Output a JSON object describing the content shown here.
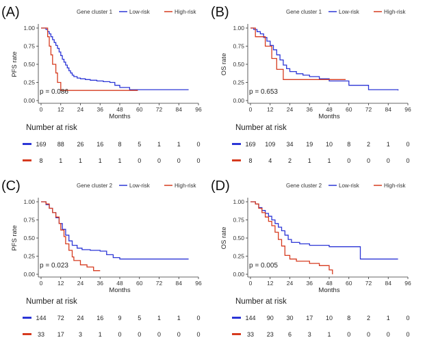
{
  "colors": {
    "low": "#2b35d6",
    "high": "#d63a1e",
    "axis": "#333333"
  },
  "chart_data": [
    {
      "type": "line",
      "panel_label": "(A)",
      "legend_title": "Gene cluster 1",
      "legend_labels": [
        "Low-risk",
        "High-risk"
      ],
      "ylabel": "PFS rate",
      "xlabel": "Months",
      "xticks": [
        "0",
        "12",
        "24",
        "36",
        "48",
        "60",
        "72",
        "84",
        "96"
      ],
      "yticks": [
        "0.00",
        "0.25",
        "0.50",
        "0.75",
        "1.00"
      ],
      "xlim": [
        0,
        96
      ],
      "ylim": [
        0,
        1
      ],
      "pvalue": "p = 0.086",
      "risk_title": "Number at risk",
      "series": [
        {
          "name": "Low-risk",
          "x": [
            0,
            3,
            4,
            5,
            6,
            7,
            8,
            9,
            10,
            11,
            12,
            13,
            14,
            15,
            16,
            17,
            18,
            19,
            20,
            22,
            24,
            27,
            30,
            34,
            38,
            42,
            45,
            48,
            54,
            90
          ],
          "values": [
            1.0,
            0.98,
            0.95,
            0.92,
            0.88,
            0.84,
            0.8,
            0.76,
            0.72,
            0.67,
            0.62,
            0.57,
            0.53,
            0.49,
            0.45,
            0.41,
            0.38,
            0.35,
            0.33,
            0.31,
            0.3,
            0.29,
            0.28,
            0.27,
            0.26,
            0.25,
            0.21,
            0.18,
            0.15,
            0.15
          ],
          "risk": [
            "169",
            "88",
            "26",
            "16",
            "8",
            "5",
            "1",
            "1",
            "0"
          ]
        },
        {
          "name": "High-risk",
          "x": [
            0,
            3,
            4,
            5,
            6,
            7,
            9,
            10,
            12,
            59
          ],
          "values": [
            1.0,
            1.0,
            0.88,
            0.75,
            0.63,
            0.5,
            0.38,
            0.25,
            0.14,
            0.14
          ],
          "risk": [
            "8",
            "1",
            "1",
            "1",
            "1",
            "0",
            "0",
            "0",
            "0"
          ]
        }
      ]
    },
    {
      "type": "line",
      "panel_label": "(B)",
      "legend_title": "Gene cluster 1",
      "legend_labels": [
        "Low-risk",
        "High-risk"
      ],
      "ylabel": "OS rate",
      "xlabel": "Months",
      "xticks": [
        "0",
        "12",
        "24",
        "36",
        "48",
        "60",
        "72",
        "84",
        "96"
      ],
      "yticks": [
        "0.00",
        "0.25",
        "0.50",
        "0.75",
        "1.00"
      ],
      "xlim": [
        0,
        96
      ],
      "ylim": [
        0,
        1
      ],
      "pvalue": "p = 0.653",
      "risk_title": "Number at risk",
      "series": [
        {
          "name": "Low-risk",
          "x": [
            0,
            2,
            4,
            6,
            8,
            10,
            12,
            14,
            16,
            18,
            20,
            22,
            24,
            28,
            32,
            36,
            42,
            48,
            60,
            72,
            90
          ],
          "values": [
            1.0,
            0.98,
            0.95,
            0.92,
            0.87,
            0.82,
            0.76,
            0.7,
            0.63,
            0.56,
            0.49,
            0.44,
            0.4,
            0.37,
            0.35,
            0.33,
            0.3,
            0.27,
            0.21,
            0.15,
            0.14
          ],
          "risk": [
            "169",
            "109",
            "34",
            "19",
            "10",
            "8",
            "2",
            "1",
            "0"
          ]
        },
        {
          "name": "High-risk",
          "x": [
            0,
            3,
            9,
            13,
            16,
            20,
            58
          ],
          "values": [
            1.0,
            0.88,
            0.75,
            0.58,
            0.43,
            0.29,
            0.29
          ],
          "risk": [
            "8",
            "4",
            "2",
            "1",
            "1",
            "0",
            "0",
            "0",
            "0"
          ]
        }
      ]
    },
    {
      "type": "line",
      "panel_label": "(C)",
      "legend_title": "Gene cluster 2",
      "legend_labels": [
        "Low-risk",
        "High-risk"
      ],
      "ylabel": "PFS rate",
      "xlabel": "Months",
      "xticks": [
        "0",
        "12",
        "24",
        "36",
        "48",
        "60",
        "72",
        "84",
        "96"
      ],
      "yticks": [
        "0.00",
        "0.25",
        "0.50",
        "0.75",
        "1.00"
      ],
      "xlim": [
        0,
        96
      ],
      "ylim": [
        0,
        1
      ],
      "pvalue": "p = 0.023",
      "risk_title": "Number at risk",
      "series": [
        {
          "name": "Low-risk",
          "x": [
            0,
            3,
            5,
            7,
            9,
            11,
            13,
            15,
            17,
            19,
            22,
            25,
            30,
            36,
            40,
            44,
            48,
            90
          ],
          "values": [
            1.0,
            0.96,
            0.91,
            0.85,
            0.78,
            0.7,
            0.62,
            0.54,
            0.46,
            0.4,
            0.36,
            0.34,
            0.33,
            0.32,
            0.27,
            0.23,
            0.21,
            0.21
          ],
          "risk": [
            "144",
            "72",
            "24",
            "16",
            "9",
            "5",
            "1",
            "1",
            "0"
          ]
        },
        {
          "name": "High-risk",
          "x": [
            0,
            3,
            5,
            7,
            9,
            11,
            12,
            14,
            15,
            17,
            19,
            20,
            24,
            28,
            32,
            36
          ],
          "values": [
            1.0,
            0.97,
            0.91,
            0.85,
            0.79,
            0.7,
            0.61,
            0.52,
            0.42,
            0.33,
            0.24,
            0.19,
            0.13,
            0.1,
            0.05,
            0.05
          ],
          "risk": [
            "33",
            "17",
            "3",
            "1",
            "0",
            "0",
            "0",
            "0",
            "0"
          ]
        }
      ]
    },
    {
      "type": "line",
      "panel_label": "(D)",
      "legend_title": "Gene cluster 2",
      "legend_labels": [
        "Low-risk",
        "High-risk"
      ],
      "ylabel": "OS rate",
      "xlabel": "Months",
      "xticks": [
        "0",
        "12",
        "24",
        "36",
        "48",
        "60",
        "72",
        "84",
        "96"
      ],
      "yticks": [
        "0.00",
        "0.25",
        "0.50",
        "0.75",
        "1.00"
      ],
      "xlim": [
        0,
        96
      ],
      "ylim": [
        0,
        1
      ],
      "pvalue": "p = 0.005",
      "risk_title": "Number at risk",
      "series": [
        {
          "name": "Low-risk",
          "x": [
            0,
            3,
            5,
            7,
            9,
            11,
            13,
            15,
            17,
            19,
            21,
            23,
            25,
            30,
            36,
            48,
            60,
            67,
            72,
            90
          ],
          "values": [
            1.0,
            0.97,
            0.92,
            0.88,
            0.84,
            0.8,
            0.75,
            0.7,
            0.65,
            0.6,
            0.54,
            0.48,
            0.44,
            0.42,
            0.4,
            0.38,
            0.38,
            0.21,
            0.21,
            0.21
          ],
          "risk": [
            "144",
            "90",
            "30",
            "17",
            "10",
            "8",
            "2",
            "1",
            "0"
          ]
        },
        {
          "name": "High-risk",
          "x": [
            0,
            3,
            5,
            7,
            9,
            11,
            13,
            15,
            17,
            19,
            21,
            24,
            28,
            36,
            42,
            48,
            50
          ],
          "values": [
            1.0,
            0.97,
            0.91,
            0.85,
            0.79,
            0.73,
            0.67,
            0.58,
            0.48,
            0.39,
            0.26,
            0.21,
            0.18,
            0.15,
            0.12,
            0.06,
            0.0
          ],
          "risk": [
            "33",
            "23",
            "6",
            "3",
            "1",
            "0",
            "0",
            "0",
            "0"
          ]
        }
      ]
    }
  ]
}
